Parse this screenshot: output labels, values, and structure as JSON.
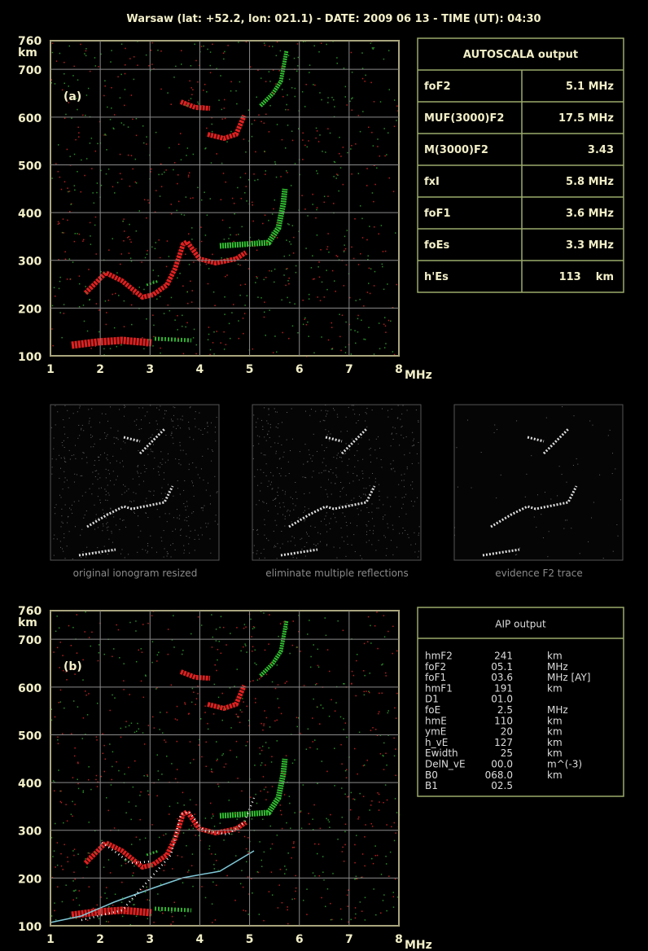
{
  "header": {
    "title": "Warsaw (lat: +52.2, lon: 021.1) - DATE: 2009 06 13 - TIME (UT): 04:30"
  },
  "panels": [
    {
      "label": "(a)",
      "yticks": [
        760,
        700,
        600,
        500,
        400,
        300,
        200,
        100
      ],
      "y_unit": "km",
      "xticks": [
        1,
        2,
        3,
        4,
        5,
        6,
        7,
        8
      ],
      "x_unit": "MHz"
    },
    {
      "label": "(b)",
      "yticks": [
        760,
        700,
        600,
        500,
        400,
        300,
        200,
        100
      ],
      "y_unit": "km",
      "xticks": [
        1,
        2,
        3,
        4,
        5,
        6,
        7,
        8
      ],
      "x_unit": "MHz"
    }
  ],
  "autoscala": {
    "title": "AUTOSCALA output",
    "rows": [
      [
        "foF2",
        "5.1 MHz"
      ],
      [
        "MUF(3000)F2",
        "17.5 MHz"
      ],
      [
        "M(3000)F2",
        "3.43"
      ],
      [
        "fxI",
        "5.8 MHz"
      ],
      [
        "foF1",
        "3.6 MHz"
      ],
      [
        "foEs",
        "3.3 MHz"
      ],
      [
        "h'Es",
        "113    km"
      ]
    ]
  },
  "thumbnails": [
    {
      "caption": "original ionogram resized"
    },
    {
      "caption": "eliminate multiple reflections"
    },
    {
      "caption": "evidence F2 trace"
    }
  ],
  "aip": {
    "title": "AIP output",
    "rows": [
      [
        "hmF2",
        "241",
        "km"
      ],
      [
        "foF2",
        "05.1",
        "MHz"
      ],
      [
        "foF1",
        "03.6",
        "MHz [AY]"
      ],
      [
        "hmF1",
        "191",
        "km"
      ],
      [
        "D1",
        "01.0"
      ],
      [
        "foE",
        "2.5",
        "MHz"
      ],
      [
        "hmE",
        "110",
        "km"
      ],
      [
        "ymE",
        "20",
        "km"
      ],
      [
        "h_vE",
        "127",
        "km"
      ],
      [
        "Ewidth",
        "25",
        "km"
      ],
      [
        "DelN_vE",
        "00.0",
        "m^(-3)"
      ],
      [
        "B0",
        "068.0",
        "km"
      ],
      [
        "B1",
        "02.5"
      ]
    ]
  }
}
